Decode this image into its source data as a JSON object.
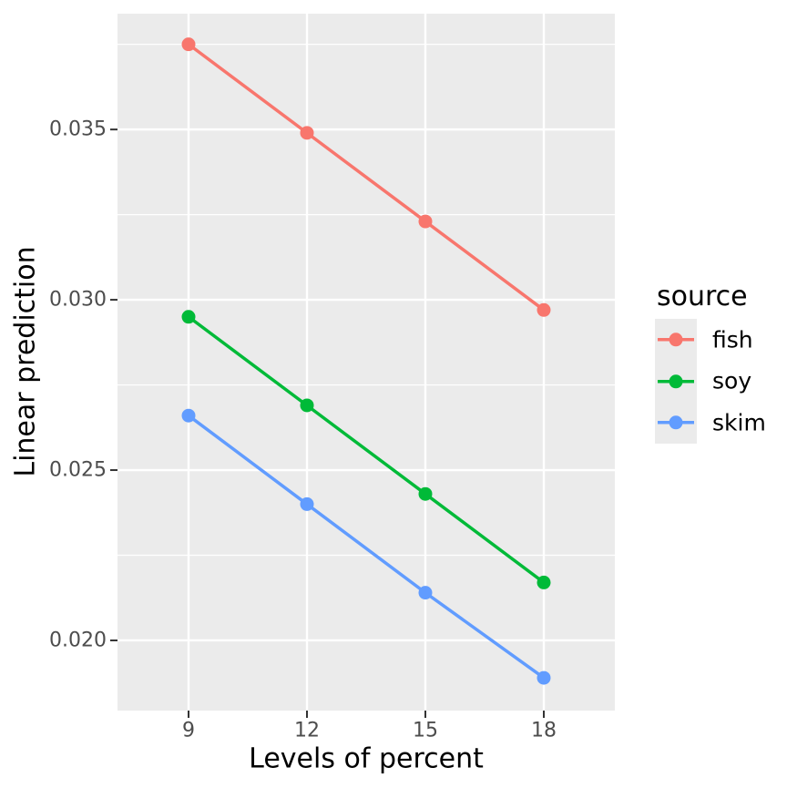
{
  "figure": {
    "background": "#FFFFFF",
    "panel_background": "#EBEBEB",
    "gridline_color": "#FFFFFF",
    "tick_mark_color": "#333333",
    "axis_text_color": "#4D4D4D",
    "title_text_color": "#000000"
  },
  "chart_data": {
    "type": "line",
    "title": "",
    "xlabel": "Levels of percent",
    "ylabel": "Linear prediction",
    "x": [
      9,
      12,
      15,
      18
    ],
    "series": [
      {
        "name": "fish",
        "color": "#F8766D",
        "values": [
          0.0375,
          0.0349,
          0.0323,
          0.0297
        ]
      },
      {
        "name": "soy",
        "color": "#00BA38",
        "values": [
          0.0295,
          0.0269,
          0.0243,
          0.0217
        ]
      },
      {
        "name": "skim",
        "color": "#619CFF",
        "values": [
          0.0266,
          0.024,
          0.0214,
          0.0189
        ]
      }
    ],
    "xlim": [
      7.2,
      19.8
    ],
    "ylim": [
      0.01794,
      0.0384
    ],
    "x_breaks": [
      9,
      12,
      15,
      18
    ],
    "y_breaks": [
      0.02,
      0.025,
      0.03,
      0.035
    ],
    "y_minor_breaks": [
      0.0225,
      0.0275,
      0.0325,
      0.0375
    ],
    "grid": "on",
    "markers": true,
    "legend_position": "right"
  },
  "axes": {
    "x_title": "Levels of percent",
    "y_title": "Linear prediction",
    "x_tick_labels": [
      "9",
      "12",
      "15",
      "18"
    ],
    "y_tick_labels": [
      "0.020",
      "0.025",
      "0.030",
      "0.035"
    ]
  },
  "legend": {
    "title": "source",
    "items": [
      {
        "label": "fish",
        "color": "#F8766D"
      },
      {
        "label": "soy",
        "color": "#00BA38"
      },
      {
        "label": "skim",
        "color": "#619CFF"
      }
    ]
  }
}
